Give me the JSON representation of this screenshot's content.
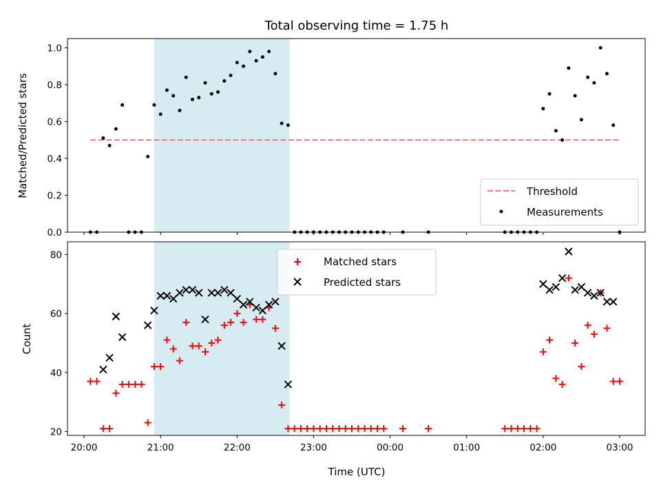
{
  "figure": {
    "title": "Total observing time = 1.75 h",
    "shaded_span": [
      "20:55",
      "22:41"
    ],
    "shade_color": "#add8e6",
    "xlabel": "Time (UTC)",
    "xticks": [
      "20:00",
      "21:00",
      "22:00",
      "23:00",
      "00:00",
      "01:00",
      "02:00",
      "03:00"
    ]
  },
  "chart_data": [
    {
      "type": "scatter",
      "panel": "top",
      "xlabel": "",
      "ylabel": "Matched/Predicted stars",
      "ylim": [
        0,
        1.05
      ],
      "yticks": [
        "0.0",
        "0.2",
        "0.4",
        "0.6",
        "0.8",
        "1.0"
      ],
      "xlim": [
        "19:47",
        "03:20"
      ],
      "legend_position": "lower right",
      "threshold": {
        "name": "Threshold",
        "value": 0.5,
        "x_range": [
          "20:05",
          "03:00"
        ],
        "color": "#f08080",
        "style": "dashed"
      },
      "series": [
        {
          "name": "Measurements",
          "marker": "dot",
          "color": "#000000",
          "points": [
            [
              "20:05",
              0.0
            ],
            [
              "20:10",
              0.0
            ],
            [
              "20:15",
              0.51
            ],
            [
              "20:20",
              0.47
            ],
            [
              "20:25",
              0.56
            ],
            [
              "20:30",
              0.69
            ],
            [
              "20:35",
              0.0
            ],
            [
              "20:40",
              0.0
            ],
            [
              "20:45",
              0.0
            ],
            [
              "20:50",
              0.41
            ],
            [
              "20:55",
              0.69
            ],
            [
              "21:00",
              0.64
            ],
            [
              "21:05",
              0.77
            ],
            [
              "21:10",
              0.74
            ],
            [
              "21:15",
              0.66
            ],
            [
              "21:20",
              0.84
            ],
            [
              "21:25",
              0.72
            ],
            [
              "21:30",
              0.73
            ],
            [
              "21:35",
              0.81
            ],
            [
              "21:40",
              0.75
            ],
            [
              "21:45",
              0.76
            ],
            [
              "21:50",
              0.82
            ],
            [
              "21:55",
              0.85
            ],
            [
              "22:00",
              0.92
            ],
            [
              "22:05",
              0.9
            ],
            [
              "22:10",
              0.98
            ],
            [
              "22:15",
              0.93
            ],
            [
              "22:20",
              0.95
            ],
            [
              "22:25",
              0.98
            ],
            [
              "22:30",
              0.86
            ],
            [
              "22:35",
              0.59
            ],
            [
              "22:40",
              0.58
            ],
            [
              "22:45",
              0.0
            ],
            [
              "22:50",
              0.0
            ],
            [
              "22:55",
              0.0
            ],
            [
              "23:00",
              0.0
            ],
            [
              "23:05",
              0.0
            ],
            [
              "23:10",
              0.0
            ],
            [
              "23:15",
              0.0
            ],
            [
              "23:20",
              0.0
            ],
            [
              "23:25",
              0.0
            ],
            [
              "23:30",
              0.0
            ],
            [
              "23:35",
              0.0
            ],
            [
              "23:40",
              0.0
            ],
            [
              "23:45",
              0.0
            ],
            [
              "23:50",
              0.0
            ],
            [
              "23:55",
              0.0
            ],
            [
              "00:10",
              0.0
            ],
            [
              "00:30",
              0.0
            ],
            [
              "01:30",
              0.0
            ],
            [
              "01:35",
              0.0
            ],
            [
              "01:40",
              0.0
            ],
            [
              "01:45",
              0.0
            ],
            [
              "01:50",
              0.0
            ],
            [
              "01:55",
              0.0
            ],
            [
              "02:00",
              0.67
            ],
            [
              "02:05",
              0.75
            ],
            [
              "02:10",
              0.55
            ],
            [
              "02:15",
              0.5
            ],
            [
              "02:20",
              0.89
            ],
            [
              "02:25",
              0.74
            ],
            [
              "02:30",
              0.61
            ],
            [
              "02:35",
              0.84
            ],
            [
              "02:40",
              0.81
            ],
            [
              "02:45",
              1.0
            ],
            [
              "02:50",
              0.86
            ],
            [
              "02:55",
              0.58
            ],
            [
              "03:00",
              0.0
            ]
          ]
        }
      ]
    },
    {
      "type": "scatter",
      "panel": "bottom",
      "xlabel": "Time (UTC)",
      "ylabel": "Count",
      "ylim": [
        18.7,
        84.3
      ],
      "yticks": [
        "20",
        "40",
        "60",
        "80"
      ],
      "xlim": [
        "19:47",
        "03:20"
      ],
      "legend_position": "upper center",
      "series": [
        {
          "name": "Matched stars",
          "marker": "plus",
          "color": "#ff0000",
          "points": [
            [
              "20:05",
              37
            ],
            [
              "20:10",
              37
            ],
            [
              "20:15",
              21
            ],
            [
              "20:20",
              21
            ],
            [
              "20:25",
              33
            ],
            [
              "20:30",
              36
            ],
            [
              "20:35",
              36
            ],
            [
              "20:40",
              36
            ],
            [
              "20:45",
              36
            ],
            [
              "20:50",
              23
            ],
            [
              "20:55",
              42
            ],
            [
              "21:00",
              42
            ],
            [
              "21:05",
              51
            ],
            [
              "21:10",
              48
            ],
            [
              "21:15",
              44
            ],
            [
              "21:20",
              57
            ],
            [
              "21:25",
              49
            ],
            [
              "21:30",
              49
            ],
            [
              "21:35",
              47
            ],
            [
              "21:40",
              50
            ],
            [
              "21:45",
              51
            ],
            [
              "21:50",
              56
            ],
            [
              "21:55",
              57
            ],
            [
              "22:00",
              60
            ],
            [
              "22:05",
              57
            ],
            [
              "22:10",
              63
            ],
            [
              "22:15",
              58
            ],
            [
              "22:20",
              58
            ],
            [
              "22:25",
              62
            ],
            [
              "22:30",
              55
            ],
            [
              "22:35",
              29
            ],
            [
              "22:40",
              21
            ],
            [
              "22:45",
              21
            ],
            [
              "22:50",
              21
            ],
            [
              "22:55",
              21
            ],
            [
              "23:00",
              21
            ],
            [
              "23:05",
              21
            ],
            [
              "23:10",
              21
            ],
            [
              "23:15",
              21
            ],
            [
              "23:20",
              21
            ],
            [
              "23:25",
              21
            ],
            [
              "23:30",
              21
            ],
            [
              "23:35",
              21
            ],
            [
              "23:40",
              21
            ],
            [
              "23:45",
              21
            ],
            [
              "23:50",
              21
            ],
            [
              "23:55",
              21
            ],
            [
              "00:10",
              21
            ],
            [
              "00:30",
              21
            ],
            [
              "01:30",
              21
            ],
            [
              "01:35",
              21
            ],
            [
              "01:40",
              21
            ],
            [
              "01:45",
              21
            ],
            [
              "01:50",
              21
            ],
            [
              "01:55",
              21
            ],
            [
              "02:00",
              47
            ],
            [
              "02:05",
              51
            ],
            [
              "02:10",
              38
            ],
            [
              "02:15",
              36
            ],
            [
              "02:20",
              72
            ],
            [
              "02:25",
              50
            ],
            [
              "02:30",
              42
            ],
            [
              "02:35",
              56
            ],
            [
              "02:40",
              53
            ],
            [
              "02:45",
              67
            ],
            [
              "02:50",
              55
            ],
            [
              "02:55",
              37
            ],
            [
              "03:00",
              37
            ]
          ]
        },
        {
          "name": "Predicted stars",
          "marker": "x",
          "color": "#000000",
          "points": [
            [
              "20:15",
              41
            ],
            [
              "20:20",
              45
            ],
            [
              "20:25",
              59
            ],
            [
              "20:30",
              52
            ],
            [
              "20:50",
              56
            ],
            [
              "20:55",
              61
            ],
            [
              "21:00",
              66
            ],
            [
              "21:05",
              66
            ],
            [
              "21:10",
              65
            ],
            [
              "21:15",
              67
            ],
            [
              "21:20",
              68
            ],
            [
              "21:25",
              68
            ],
            [
              "21:30",
              67
            ],
            [
              "21:35",
              58
            ],
            [
              "21:40",
              67
            ],
            [
              "21:45",
              67
            ],
            [
              "21:50",
              68
            ],
            [
              "21:55",
              67
            ],
            [
              "22:00",
              65
            ],
            [
              "22:05",
              63
            ],
            [
              "22:10",
              64
            ],
            [
              "22:15",
              62
            ],
            [
              "22:20",
              61
            ],
            [
              "22:25",
              63
            ],
            [
              "22:30",
              64
            ],
            [
              "22:35",
              49
            ],
            [
              "22:40",
              36
            ],
            [
              "02:00",
              70
            ],
            [
              "02:05",
              68
            ],
            [
              "02:10",
              69
            ],
            [
              "02:15",
              72
            ],
            [
              "02:20",
              81
            ],
            [
              "02:25",
              68
            ],
            [
              "02:30",
              69
            ],
            [
              "02:35",
              67
            ],
            [
              "02:40",
              66
            ],
            [
              "02:45",
              67
            ],
            [
              "02:50",
              64
            ],
            [
              "02:55",
              64
            ]
          ]
        }
      ]
    }
  ]
}
